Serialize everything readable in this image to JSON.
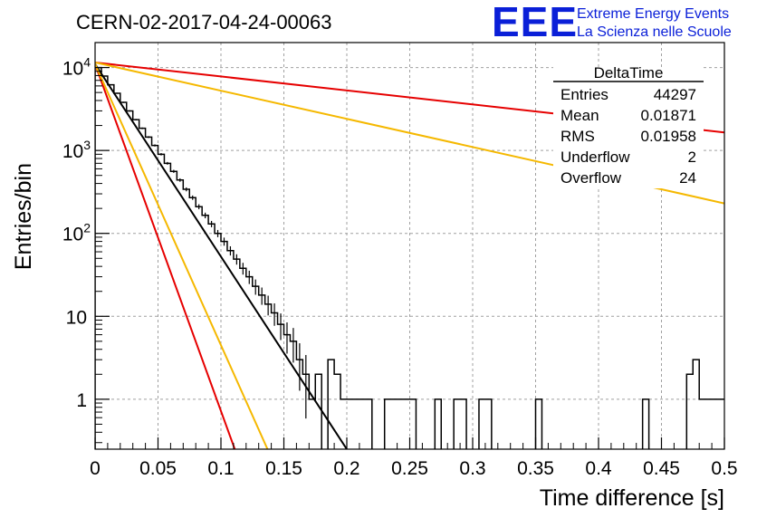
{
  "chart_data": {
    "type": "histogram",
    "title": "CERN-02-2017-04-24-00063",
    "xlabel": "Time difference [s]",
    "ylabel": "Entries/bin",
    "xlim": [
      0,
      0.5
    ],
    "ylim": [
      0.25,
      20000
    ],
    "yscale": "log",
    "grid": true,
    "x_ticks": [
      "0",
      "0.05",
      "0.1",
      "0.15",
      "0.2",
      "0.25",
      "0.3",
      "0.35",
      "0.4",
      "0.45",
      "0.5"
    ],
    "y_ticks": [
      {
        "base": "1",
        "exp": "",
        "value": 1
      },
      {
        "base": "10",
        "exp": "",
        "value": 10
      },
      {
        "base": "10",
        "exp": "2",
        "value": 100
      },
      {
        "base": "10",
        "exp": "3",
        "value": 1000
      },
      {
        "base": "10",
        "exp": "4",
        "value": 10000
      }
    ],
    "bin_width": 0.005,
    "histogram": {
      "name": "DeltaTime",
      "color": "#000000",
      "values": [
        10000,
        7900,
        6200,
        4900,
        3800,
        3000,
        2350,
        1850,
        1450,
        1150,
        900,
        700,
        560,
        440,
        340,
        270,
        210,
        165,
        130,
        100,
        80,
        62,
        49,
        38,
        30,
        23,
        18,
        14,
        11,
        8,
        6,
        5,
        3,
        2,
        1,
        2,
        0,
        3,
        2,
        1,
        1,
        1,
        1,
        1,
        0,
        0,
        1,
        1,
        1,
        1,
        1,
        0,
        0,
        0,
        1,
        0,
        0,
        1,
        1,
        0,
        0,
        1,
        1,
        0,
        0,
        0,
        0,
        0,
        0,
        0,
        1,
        0,
        0,
        0,
        0,
        0,
        0,
        0,
        0,
        0,
        0,
        0,
        0,
        0,
        0,
        0,
        0,
        1,
        0,
        0,
        0,
        0,
        0,
        0,
        2,
        3,
        1,
        1,
        1,
        1
      ]
    },
    "fit_curves": [
      {
        "color": "#000000",
        "y0": 11000,
        "x_end": 0.2,
        "y_end": 0.25
      },
      {
        "color": "#e60000",
        "y0": 11500,
        "x_end": 0.5,
        "y_end": 1650
      },
      {
        "color": "#e60000",
        "y0": 11000,
        "x_end": 0.111,
        "y_end": 0.25
      },
      {
        "color": "#f5b800",
        "y0": 11500,
        "x_end": 0.5,
        "y_end": 230
      },
      {
        "color": "#f5b800",
        "y0": 11000,
        "x_end": 0.137,
        "y_end": 0.25
      }
    ],
    "stats": {
      "title": "DeltaTime",
      "rows": [
        {
          "label": "Entries",
          "value": "44297"
        },
        {
          "label": "Mean",
          "value": "0.01871"
        },
        {
          "label": "RMS",
          "value": "0.01958"
        },
        {
          "label": "Underflow",
          "value": "2"
        },
        {
          "label": "Overflow",
          "value": "24"
        }
      ]
    }
  },
  "logo": {
    "text": "EEE",
    "line1": "Extreme Energy Events",
    "line2": "La Scienza nelle Scuole",
    "color": "#0a1fd8"
  }
}
